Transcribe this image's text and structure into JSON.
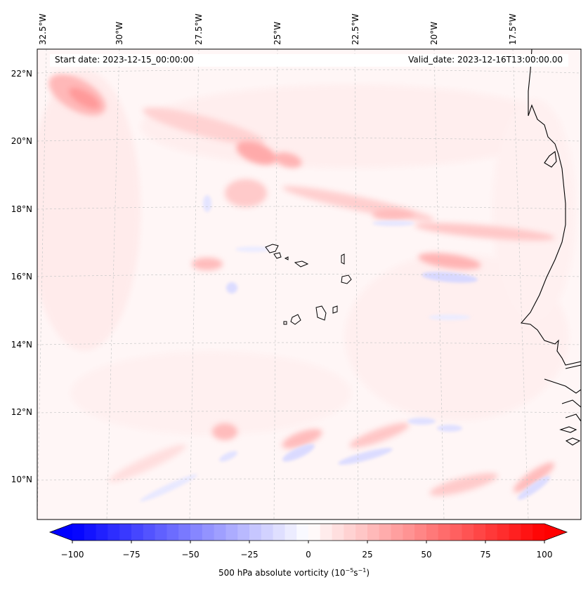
{
  "map": {
    "start_date": "Start date: 2023-12-15_00:00:00",
    "valid_date": "Valid_date: 2023-12-16T13:00:00.00",
    "longitude_labels": [
      "32.5°W",
      "30°W",
      "27.5°W",
      "25°W",
      "22.5°W",
      "20°W",
      "17.5°W"
    ],
    "latitude_labels": [
      "22°N",
      "20°N",
      "18°N",
      "16°N",
      "14°N",
      "12°N",
      "10°N"
    ]
  },
  "colorbar": {
    "label_main": "500 hPa absolute vorticity (10",
    "label_exp1": "−5",
    "label_mid": "s",
    "label_exp2": "−1",
    "label_end": ")",
    "ticks": [
      "−100",
      "−75",
      "−50",
      "−25",
      "0",
      "25",
      "50",
      "75",
      "100"
    ],
    "range": [
      -100,
      100
    ],
    "colors": {
      "negative": "#0000ff",
      "zero": "#ffffff",
      "positive": "#ff0000"
    }
  }
}
